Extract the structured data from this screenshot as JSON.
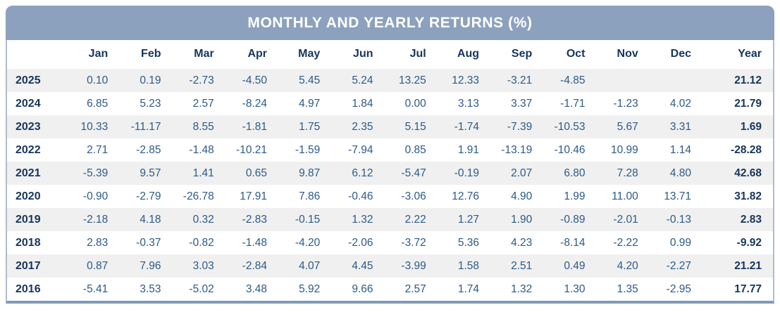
{
  "title": "MONTHLY AND YEARLY RETURNS (%)",
  "colors": {
    "header_bar": "#8ca1bd",
    "frame_border": "#aebdd1",
    "bottom_border": "#8099b8",
    "heading_text": "#17355e",
    "value_text": "#2b5a8a",
    "striped_row": "#f0f0f0",
    "title_text": "#ffffff"
  },
  "chart_data": {
    "type": "table",
    "title": "MONTHLY AND YEARLY RETURNS (%)",
    "columns": [
      "Jan",
      "Feb",
      "Mar",
      "Apr",
      "May",
      "Jun",
      "Jul",
      "Aug",
      "Sep",
      "Oct",
      "Nov",
      "Dec",
      "Year"
    ],
    "rows": [
      {
        "year": "2025",
        "values": [
          "0.10",
          "0.19",
          "-2.73",
          "-4.50",
          "5.45",
          "5.24",
          "13.25",
          "12.33",
          "-3.21",
          "-4.85",
          "",
          ""
        ],
        "year_total": "21.12"
      },
      {
        "year": "2024",
        "values": [
          "6.85",
          "5.23",
          "2.57",
          "-8.24",
          "4.97",
          "1.84",
          "0.00",
          "3.13",
          "3.37",
          "-1.71",
          "-1.23",
          "4.02"
        ],
        "year_total": "21.79"
      },
      {
        "year": "2023",
        "values": [
          "10.33",
          "-11.17",
          "8.55",
          "-1.81",
          "1.75",
          "2.35",
          "5.15",
          "-1.74",
          "-7.39",
          "-10.53",
          "5.67",
          "3.31"
        ],
        "year_total": "1.69"
      },
      {
        "year": "2022",
        "values": [
          "2.71",
          "-2.85",
          "-1.48",
          "-10.21",
          "-1.59",
          "-7.94",
          "0.85",
          "1.91",
          "-13.19",
          "-10.46",
          "10.99",
          "1.14"
        ],
        "year_total": "-28.28"
      },
      {
        "year": "2021",
        "values": [
          "-5.39",
          "9.57",
          "1.41",
          "0.65",
          "9.87",
          "6.12",
          "-5.47",
          "-0.19",
          "2.07",
          "6.80",
          "7.28",
          "4.80"
        ],
        "year_total": "42.68"
      },
      {
        "year": "2020",
        "values": [
          "-0.90",
          "-2.79",
          "-26.78",
          "17.91",
          "7.86",
          "-0.46",
          "-3.06",
          "12.76",
          "4.90",
          "1.99",
          "11.00",
          "13.71"
        ],
        "year_total": "31.82"
      },
      {
        "year": "2019",
        "values": [
          "-2.18",
          "4.18",
          "0.32",
          "-2.83",
          "-0.15",
          "1.32",
          "2.22",
          "1.27",
          "1.90",
          "-0.89",
          "-2.01",
          "-0.13"
        ],
        "year_total": "2.83"
      },
      {
        "year": "2018",
        "values": [
          "2.83",
          "-0.37",
          "-0.82",
          "-1.48",
          "-4.20",
          "-2.06",
          "-3.72",
          "5.36",
          "4.23",
          "-8.14",
          "-2.22",
          "0.99"
        ],
        "year_total": "-9.92"
      },
      {
        "year": "2017",
        "values": [
          "0.87",
          "7.96",
          "3.03",
          "-2.84",
          "4.07",
          "4.45",
          "-3.99",
          "1.58",
          "2.51",
          "0.49",
          "4.20",
          "-2.27"
        ],
        "year_total": "21.21"
      },
      {
        "year": "2016",
        "values": [
          "-5.41",
          "3.53",
          "-5.02",
          "3.48",
          "5.92",
          "9.66",
          "2.57",
          "1.74",
          "1.32",
          "1.30",
          "1.35",
          "-2.95"
        ],
        "year_total": "17.77"
      }
    ]
  }
}
